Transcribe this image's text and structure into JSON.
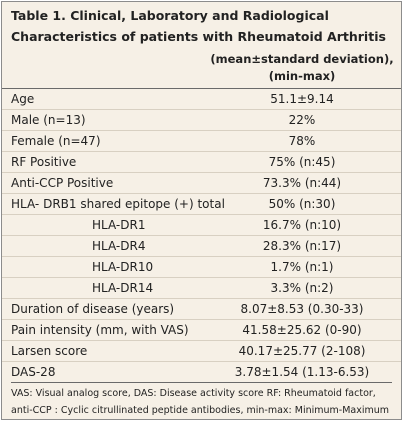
{
  "table": {
    "title": "Table 1. Clinical, Laboratory and Radiological Characteristics of patients with Rheumatoid Arthritis",
    "header": [
      "(mean±standard deviation),",
      "(min-max)"
    ],
    "rows": [
      [
        "Age",
        "51.1±9.14"
      ],
      [
        "Male (n=13)",
        "22%"
      ],
      [
        "Female (n=47)",
        "78%"
      ],
      [
        "RF Positive",
        "75% (n:45)"
      ],
      [
        "Anti-CCP Positive",
        "73.3% (n:44)"
      ],
      [
        "HLA- DRB1 shared epitope (+) total",
        "50% (n:30)"
      ],
      [
        "HLA-DR1",
        "16.7% (n:10)"
      ],
      [
        "HLA-DR4",
        "28.3% (n:17)"
      ],
      [
        "HLA-DR10",
        "1.7% (n:1)"
      ],
      [
        "HLA-DR14",
        "3.3% (n:2)"
      ],
      [
        "Duration of disease (years)",
        "8.07±8.53 (0.30-33)"
      ],
      [
        "Pain intensity (mm, with VAS)",
        "41.58±25.62 (0-90)"
      ],
      [
        "Larsen score",
        "40.17±25.77 (2-108)"
      ],
      [
        "DAS-28",
        "3.78±1.54 (1.13-6.53)"
      ]
    ],
    "footnote": [
      "VAS: Visual analog score, DAS: Disease activity score RF: Rheumatoid factor,",
      "anti-CCP : Cyclic citrullinated peptide antibodies, min-max: Minimum-Maximum"
    ]
  }
}
